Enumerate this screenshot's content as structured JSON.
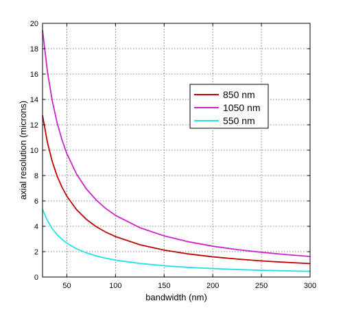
{
  "chart_data": {
    "type": "line",
    "title": "",
    "xlabel": "bandwidth (nm)",
    "ylabel": "axial resolution (microns)",
    "xlim": [
      25,
      300
    ],
    "ylim": [
      0,
      20
    ],
    "xticks": [
      50,
      100,
      150,
      200,
      250,
      300
    ],
    "yticks": [
      0,
      2,
      4,
      6,
      8,
      10,
      12,
      14,
      16,
      18,
      20
    ],
    "grid": true,
    "legend_position": "upper-right",
    "x": [
      25,
      30,
      35,
      40,
      45,
      50,
      60,
      70,
      80,
      90,
      100,
      125,
      150,
      175,
      200,
      225,
      250,
      275,
      300
    ],
    "series": [
      {
        "name": "850 nm",
        "color": "#c00000",
        "values": [
          12.74,
          10.62,
          9.1,
          7.96,
          7.08,
          6.37,
          5.31,
          4.55,
          3.98,
          3.54,
          3.19,
          2.55,
          2.12,
          1.82,
          1.59,
          1.42,
          1.27,
          1.16,
          1.06
        ]
      },
      {
        "name": "1050 nm",
        "color": "#cc22cc",
        "values": [
          19.45,
          16.21,
          13.89,
          12.16,
          10.81,
          9.73,
          8.11,
          6.95,
          6.08,
          5.4,
          4.86,
          3.89,
          3.24,
          2.78,
          2.43,
          2.16,
          1.95,
          1.77,
          1.62
        ]
      },
      {
        "name": "550 nm",
        "color": "#22e0e8",
        "values": [
          5.34,
          4.45,
          3.81,
          3.34,
          2.97,
          2.67,
          2.22,
          1.91,
          1.67,
          1.48,
          1.33,
          1.07,
          0.89,
          0.76,
          0.67,
          0.59,
          0.53,
          0.49,
          0.45
        ]
      }
    ]
  }
}
